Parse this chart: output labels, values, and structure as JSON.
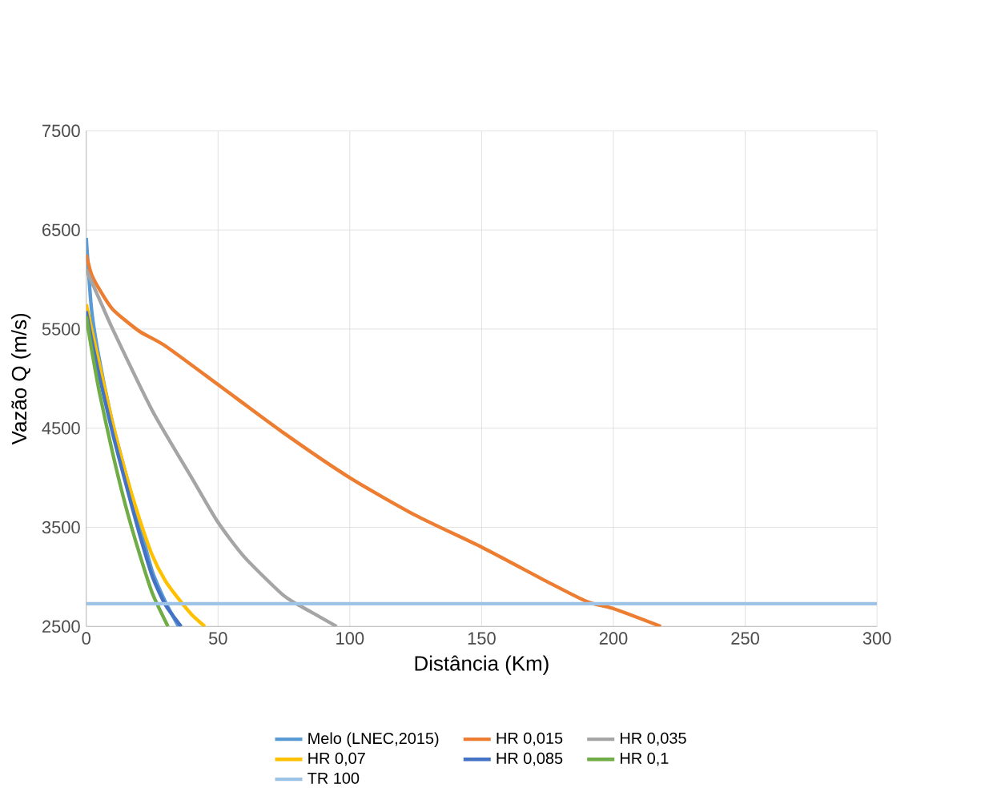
{
  "chart_data": {
    "type": "line",
    "xlabel": "Distância (Km)",
    "ylabel": "Vazão Q (m/s)",
    "xlim": [
      0,
      300
    ],
    "ylim": [
      2500,
      7500
    ],
    "xticks": [
      0,
      50,
      100,
      150,
      200,
      250,
      300
    ],
    "yticks": [
      2500,
      3500,
      4500,
      5500,
      6500,
      7500
    ],
    "grid": true,
    "legend": "bottom",
    "marker": "none",
    "series": [
      {
        "name": "Melo (LNEC,2015)",
        "color": "#5b9bd5",
        "x": [
          0,
          2,
          5,
          10,
          15,
          20,
          25,
          30,
          35
        ],
        "values": [
          6420,
          5700,
          5190,
          4550,
          4040,
          3550,
          3060,
          2750,
          2500
        ]
      },
      {
        "name": "HR 0,015",
        "color": "#ed7d31",
        "x": [
          0,
          2,
          5,
          10,
          20,
          30,
          50,
          75,
          100,
          125,
          150,
          175,
          190,
          200,
          218
        ],
        "values": [
          6250,
          6050,
          5900,
          5700,
          5480,
          5330,
          4940,
          4450,
          4000,
          3620,
          3300,
          2950,
          2750,
          2680,
          2500
        ]
      },
      {
        "name": "HR 0,035",
        "color": "#a5a5a5",
        "x": [
          0,
          5,
          10,
          25,
          40,
          50,
          60,
          75,
          85,
          95
        ],
        "values": [
          6100,
          5800,
          5500,
          4680,
          4000,
          3550,
          3200,
          2810,
          2650,
          2500
        ]
      },
      {
        "name": "HR 0,07",
        "color": "#ffc000",
        "x": [
          0,
          2,
          5,
          10,
          15,
          20,
          25,
          30,
          35,
          40,
          45
        ],
        "values": [
          5750,
          5500,
          5140,
          4550,
          4040,
          3600,
          3220,
          2960,
          2780,
          2620,
          2500
        ]
      },
      {
        "name": "HR 0,085",
        "color": "#4472c4",
        "x": [
          0,
          2,
          5,
          10,
          15,
          20,
          25,
          30,
          36
        ],
        "values": [
          5680,
          5400,
          5020,
          4450,
          3940,
          3450,
          3010,
          2720,
          2500
        ]
      },
      {
        "name": "HR 0,1",
        "color": "#70ad47",
        "x": [
          0,
          2,
          5,
          10,
          15,
          20,
          25,
          31
        ],
        "values": [
          5630,
          5300,
          4860,
          4250,
          3710,
          3250,
          2840,
          2500
        ]
      },
      {
        "name": "TR 100",
        "color": "#9dc3e6",
        "x": [
          0,
          300
        ],
        "values": [
          2730,
          2730
        ]
      }
    ]
  }
}
